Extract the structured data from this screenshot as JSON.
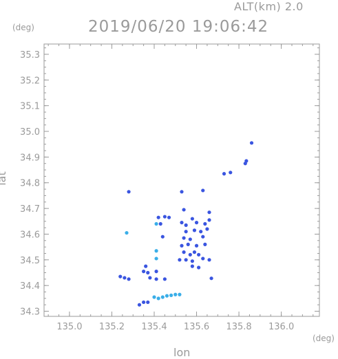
{
  "header": {
    "altitude": "ALT(km) 2.0",
    "datetime": "2019/06/20 19:06:42"
  },
  "chart_data": {
    "type": "scatter",
    "title": "2019/06/20 19:06:42",
    "subtitle": "ALT(km) 2.0",
    "xlabel": "lon",
    "ylabel": "lat",
    "x_unit": "(deg)",
    "y_unit": "(deg)",
    "xlim": [
      134.88,
      136.18
    ],
    "ylim": [
      34.28,
      35.34
    ],
    "x_ticks": [
      135.0,
      135.2,
      135.4,
      135.6,
      135.8,
      136.0
    ],
    "x_tick_labels": [
      "135.0",
      "135.2",
      "135.4",
      "135.6",
      "135.8",
      "136.0"
    ],
    "y_ticks": [
      34.3,
      34.4,
      34.5,
      34.6,
      34.7,
      34.8,
      34.9,
      35.0,
      35.1,
      35.2,
      35.3
    ],
    "y_tick_labels": [
      "34.3",
      "34.4",
      "34.5",
      "34.6",
      "34.7",
      "34.8",
      "34.9",
      "35.0",
      "35.1",
      "35.2",
      "35.3"
    ],
    "grid": false,
    "colors": {
      "main": "#3a55e0",
      "light": "#3aaee8",
      "axis": "#9a9a9a"
    },
    "points": [
      {
        "x": 135.86,
        "y": 34.955,
        "c": "main"
      },
      {
        "x": 135.83,
        "y": 34.875,
        "c": "main"
      },
      {
        "x": 135.835,
        "y": 34.885,
        "c": "main"
      },
      {
        "x": 135.73,
        "y": 34.835,
        "c": "main"
      },
      {
        "x": 135.76,
        "y": 34.84,
        "c": "main"
      },
      {
        "x": 135.28,
        "y": 34.765,
        "c": "main"
      },
      {
        "x": 135.53,
        "y": 34.765,
        "c": "main"
      },
      {
        "x": 135.63,
        "y": 34.77,
        "c": "main"
      },
      {
        "x": 135.54,
        "y": 34.695,
        "c": "main"
      },
      {
        "x": 135.66,
        "y": 34.685,
        "c": "main"
      },
      {
        "x": 135.42,
        "y": 34.665,
        "c": "main"
      },
      {
        "x": 135.45,
        "y": 34.668,
        "c": "main"
      },
      {
        "x": 135.47,
        "y": 34.665,
        "c": "main"
      },
      {
        "x": 135.58,
        "y": 34.66,
        "c": "main"
      },
      {
        "x": 135.41,
        "y": 34.64,
        "c": "light"
      },
      {
        "x": 135.43,
        "y": 34.64,
        "c": "main"
      },
      {
        "x": 135.53,
        "y": 34.645,
        "c": "main"
      },
      {
        "x": 135.55,
        "y": 34.635,
        "c": "main"
      },
      {
        "x": 135.6,
        "y": 34.645,
        "c": "main"
      },
      {
        "x": 135.64,
        "y": 34.64,
        "c": "main"
      },
      {
        "x": 135.66,
        "y": 34.655,
        "c": "main"
      },
      {
        "x": 135.55,
        "y": 34.61,
        "c": "main"
      },
      {
        "x": 135.59,
        "y": 34.615,
        "c": "main"
      },
      {
        "x": 135.62,
        "y": 34.61,
        "c": "main"
      },
      {
        "x": 135.65,
        "y": 34.62,
        "c": "main"
      },
      {
        "x": 135.27,
        "y": 34.605,
        "c": "light"
      },
      {
        "x": 135.44,
        "y": 34.59,
        "c": "main"
      },
      {
        "x": 135.54,
        "y": 34.585,
        "c": "main"
      },
      {
        "x": 135.57,
        "y": 34.58,
        "c": "main"
      },
      {
        "x": 135.63,
        "y": 34.59,
        "c": "main"
      },
      {
        "x": 135.53,
        "y": 34.555,
        "c": "main"
      },
      {
        "x": 135.56,
        "y": 34.56,
        "c": "main"
      },
      {
        "x": 135.6,
        "y": 34.555,
        "c": "main"
      },
      {
        "x": 135.64,
        "y": 34.56,
        "c": "main"
      },
      {
        "x": 135.41,
        "y": 34.535,
        "c": "light"
      },
      {
        "x": 135.54,
        "y": 34.53,
        "c": "main"
      },
      {
        "x": 135.57,
        "y": 34.52,
        "c": "main"
      },
      {
        "x": 135.59,
        "y": 34.53,
        "c": "main"
      },
      {
        "x": 135.61,
        "y": 34.52,
        "c": "main"
      },
      {
        "x": 135.41,
        "y": 34.505,
        "c": "light"
      },
      {
        "x": 135.52,
        "y": 34.5,
        "c": "main"
      },
      {
        "x": 135.55,
        "y": 34.5,
        "c": "main"
      },
      {
        "x": 135.58,
        "y": 34.495,
        "c": "main"
      },
      {
        "x": 135.63,
        "y": 34.505,
        "c": "main"
      },
      {
        "x": 135.66,
        "y": 34.5,
        "c": "main"
      },
      {
        "x": 135.58,
        "y": 34.475,
        "c": "main"
      },
      {
        "x": 135.61,
        "y": 34.47,
        "c": "main"
      },
      {
        "x": 135.36,
        "y": 34.475,
        "c": "main"
      },
      {
        "x": 135.35,
        "y": 34.455,
        "c": "main"
      },
      {
        "x": 135.37,
        "y": 34.45,
        "c": "main"
      },
      {
        "x": 135.41,
        "y": 34.455,
        "c": "main"
      },
      {
        "x": 135.24,
        "y": 34.435,
        "c": "main"
      },
      {
        "x": 135.26,
        "y": 34.43,
        "c": "main"
      },
      {
        "x": 135.28,
        "y": 34.425,
        "c": "main"
      },
      {
        "x": 135.38,
        "y": 34.43,
        "c": "main"
      },
      {
        "x": 135.41,
        "y": 34.425,
        "c": "main"
      },
      {
        "x": 135.45,
        "y": 34.425,
        "c": "main"
      },
      {
        "x": 135.67,
        "y": 34.428,
        "c": "main"
      },
      {
        "x": 135.4,
        "y": 34.355,
        "c": "light"
      },
      {
        "x": 135.42,
        "y": 34.35,
        "c": "light"
      },
      {
        "x": 135.44,
        "y": 34.355,
        "c": "light"
      },
      {
        "x": 135.46,
        "y": 34.36,
        "c": "light"
      },
      {
        "x": 135.48,
        "y": 34.362,
        "c": "light"
      },
      {
        "x": 135.5,
        "y": 34.365,
        "c": "light"
      },
      {
        "x": 135.52,
        "y": 34.365,
        "c": "light"
      },
      {
        "x": 135.35,
        "y": 34.335,
        "c": "main"
      },
      {
        "x": 135.37,
        "y": 34.335,
        "c": "main"
      },
      {
        "x": 135.33,
        "y": 34.325,
        "c": "main"
      }
    ]
  }
}
